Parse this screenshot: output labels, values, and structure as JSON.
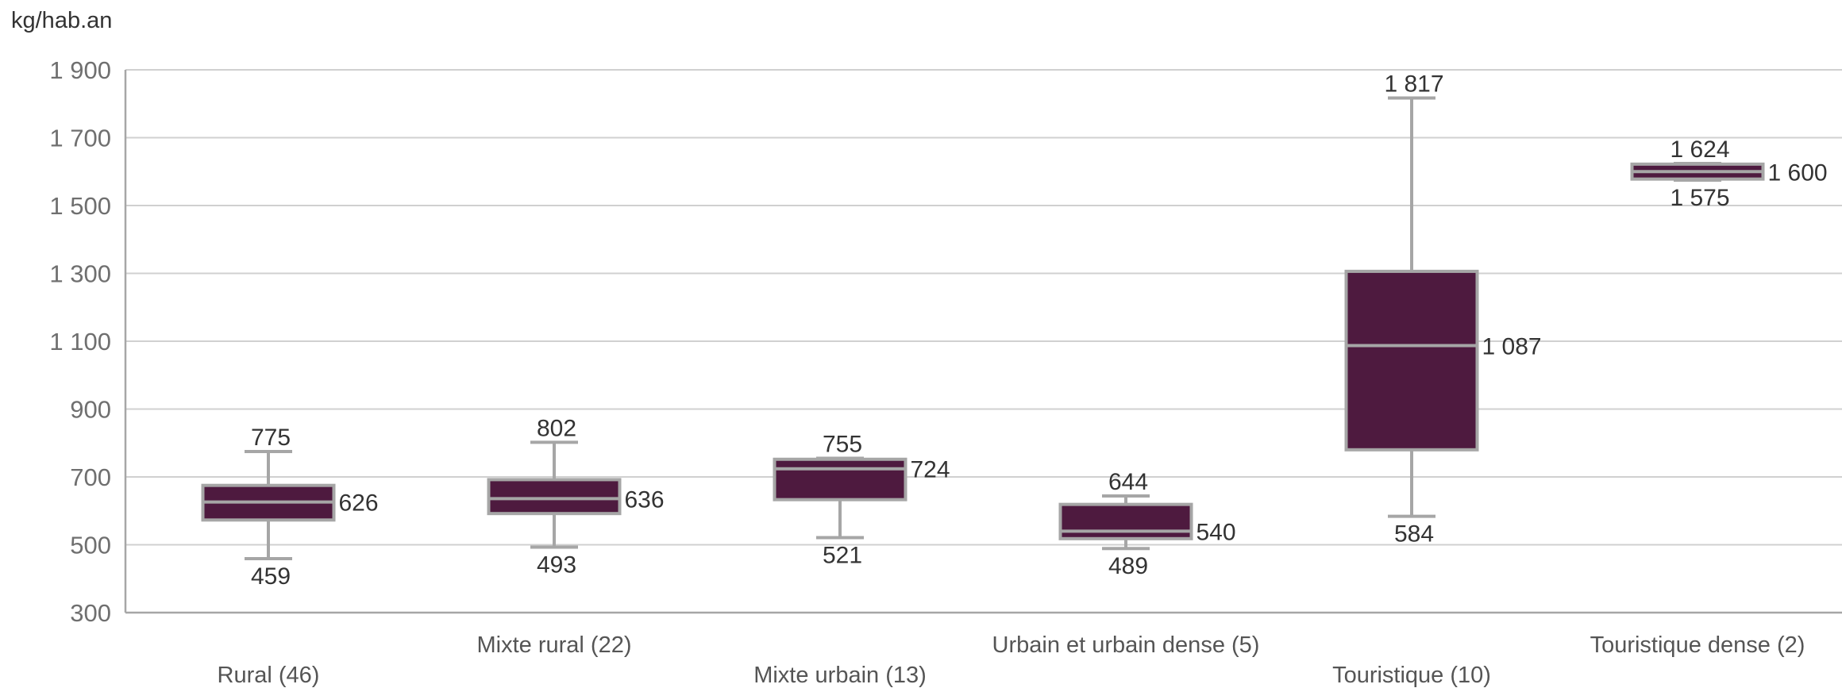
{
  "chart_data": {
    "type": "boxplot",
    "ylabel": "kg/hab.an",
    "ylim": [
      300,
      1900
    ],
    "yticks": [
      300,
      500,
      700,
      900,
      1100,
      1300,
      1500,
      1700,
      1900
    ],
    "ytick_labels": [
      "300",
      "500",
      "700",
      "900",
      "1 100",
      "1 300",
      "1 500",
      "1 700",
      "1 900"
    ],
    "grid": true,
    "box_color": "#4e1a3f",
    "edge_color": "#a6a6a6",
    "grid_color": "#d0d0d0",
    "categories": [
      "Rural (46)",
      "Mixte rural (22)",
      "Mixte urbain (13)",
      "Urbain et urbain dense (5)",
      "Touristique (10)",
      "Touristique dense (2)"
    ],
    "boxes": [
      {
        "min": 459,
        "q1": 573,
        "median": 626,
        "q3": 675,
        "max": 775,
        "labels": {
          "max": "775",
          "median": "626",
          "min": "459"
        }
      },
      {
        "min": 493,
        "q1": 592,
        "median": 636,
        "q3": 692,
        "max": 802,
        "labels": {
          "max": "802",
          "median": "636",
          "min": "493"
        }
      },
      {
        "min": 521,
        "q1": 633,
        "median": 724,
        "q3": 752,
        "max": 755,
        "labels": {
          "max": "755",
          "median": "724",
          "min": "521"
        }
      },
      {
        "min": 489,
        "q1": 518,
        "median": 540,
        "q3": 619,
        "max": 644,
        "labels": {
          "max": "644",
          "median": "540",
          "min": "489"
        }
      },
      {
        "min": 584,
        "q1": 780,
        "median": 1087,
        "q3": 1306,
        "max": 1817,
        "labels": {
          "max": "1 817",
          "median": "1 087",
          "min": "584"
        }
      },
      {
        "min": 1575,
        "q1": 1578,
        "median": 1600,
        "q3": 1622,
        "max": 1624,
        "labels": {
          "max": "1 624",
          "median": "1 600",
          "min": "1 575"
        }
      }
    ]
  }
}
